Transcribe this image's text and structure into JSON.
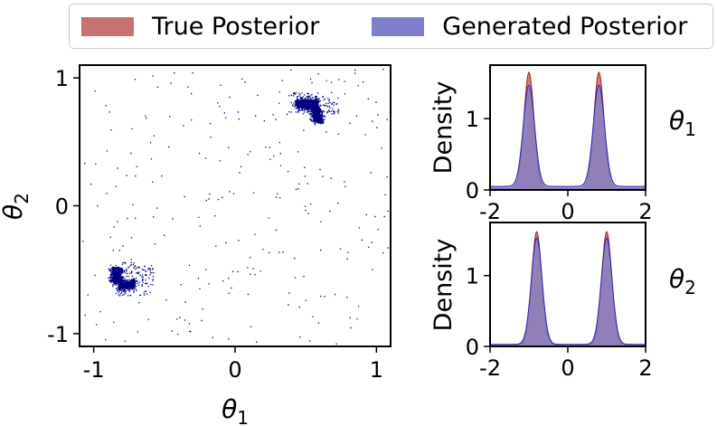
{
  "legend": {
    "true_label": "True Posterior",
    "gen_label": "Generated Posterior",
    "true_color": "#c77272",
    "gen_color": "#7d7fcc"
  },
  "chart_data": [
    {
      "type": "scatter",
      "xlabel_base": "θ",
      "xlabel_sub": "1",
      "ylabel_base": "θ",
      "ylabel_sub": "2",
      "xlim": [
        -1.1,
        1.1
      ],
      "ylim": [
        -1.1,
        1.1
      ],
      "xticks": [
        -1,
        0,
        1
      ],
      "yticks": [
        -1,
        0,
        1
      ],
      "xticklabels": [
        "-1",
        "0",
        "1"
      ],
      "yticklabels": [
        "-1",
        "0",
        "1"
      ],
      "point_color": "#000080",
      "clusters": [
        {
          "center": [
            0.52,
            0.8
          ],
          "shape": "arc-right-down",
          "approx_points": 1500
        },
        {
          "center": [
            -0.79,
            -0.58
          ],
          "shape": "arc-left-down",
          "approx_points": 1500
        }
      ],
      "background_scatter": "sparse uniform points across the full square"
    },
    {
      "type": "area",
      "xlabel": "",
      "ylabel": "Density",
      "side_label_base": "θ",
      "side_label_sub": "1",
      "xlim": [
        -2,
        2
      ],
      "ylim": [
        0,
        1.75
      ],
      "xticks": [
        -2,
        0,
        2
      ],
      "yticks": [
        0,
        1
      ],
      "xticklabels": [
        "-2",
        "0",
        "2"
      ],
      "yticklabels": [
        "0",
        "1"
      ],
      "series": [
        {
          "name": "True Posterior",
          "peaks": [
            {
              "mu": -1.0,
              "height": 1.63
            },
            {
              "mu": 0.8,
              "height": 1.63
            }
          ],
          "sigma": 0.13,
          "baseline": 0.02
        },
        {
          "name": "Generated Posterior",
          "peaks": [
            {
              "mu": -1.0,
              "height": 1.42
            },
            {
              "mu": 0.8,
              "height": 1.42
            }
          ],
          "sigma": 0.145,
          "baseline": 0.05
        }
      ]
    },
    {
      "type": "area",
      "xlabel": "",
      "ylabel": "Density",
      "side_label_base": "θ",
      "side_label_sub": "2",
      "xlim": [
        -2,
        2
      ],
      "ylim": [
        0,
        1.75
      ],
      "xticks": [
        -2,
        0,
        2
      ],
      "yticks": [
        0,
        1
      ],
      "xticklabels": [
        "-2",
        "0",
        "2"
      ],
      "yticklabels": [
        "0",
        "1"
      ],
      "series": [
        {
          "name": "True Posterior",
          "peaks": [
            {
              "mu": -0.8,
              "height": 1.6
            },
            {
              "mu": 1.0,
              "height": 1.6
            }
          ],
          "sigma": 0.13,
          "baseline": 0.02
        },
        {
          "name": "Generated Posterior",
          "peaks": [
            {
              "mu": -0.8,
              "height": 1.5
            },
            {
              "mu": 1.0,
              "height": 1.5
            }
          ],
          "sigma": 0.14,
          "baseline": 0.03
        }
      ]
    }
  ]
}
